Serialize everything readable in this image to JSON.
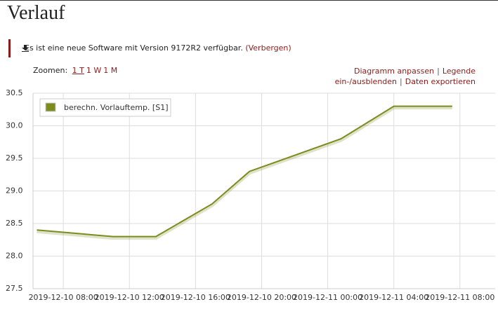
{
  "header": {
    "title": "Verlauf"
  },
  "notice": {
    "text": "Es ist eine neue Software mit Version 9172R2 verfügbar.",
    "link": "(Verbergen)"
  },
  "toolbar": {
    "zoom_label": "Zoomen:",
    "zoom_options": [
      "1 T",
      "1 W",
      "1 M"
    ],
    "actions": [
      "Diagramm anpassen",
      "Legende ein-/ausblenden",
      "Daten exportieren"
    ]
  },
  "chart_data": {
    "type": "line",
    "x": [
      "2019-12-10 06:24",
      "2019-12-10 11:00",
      "2019-12-10 13:36",
      "2019-12-10 17:00",
      "2019-12-10 19:16",
      "2019-12-11 00:48",
      "2019-12-11 04:00",
      "2019-12-11 07:32"
    ],
    "series": [
      {
        "name": "berechn. Vorlauftemp. [S1]",
        "color": "#7d8b1f",
        "values": [
          28.4,
          28.3,
          28.3,
          28.8,
          29.3,
          29.8,
          30.3,
          30.3
        ]
      }
    ],
    "xlim": [
      "2019-12-10 06:10",
      "2019-12-11 10:08"
    ],
    "xticks": [
      "2019-12-10 08:00",
      "2019-12-10 12:00",
      "2019-12-10 16:00",
      "2019-12-10 20:00",
      "2019-12-11 00:00",
      "2019-12-11 04:00",
      "2019-12-11 08:00"
    ],
    "ylim": [
      27.5,
      30.5
    ],
    "yticks": [
      27.5,
      {
        "value": 28,
        "label": "28.0"
      },
      28.5,
      {
        "value": 29,
        "label": "29.0"
      },
      29.5,
      {
        "value": 30,
        "label": "30.0"
      },
      30.5
    ],
    "grid": true,
    "legend": "top-left"
  }
}
